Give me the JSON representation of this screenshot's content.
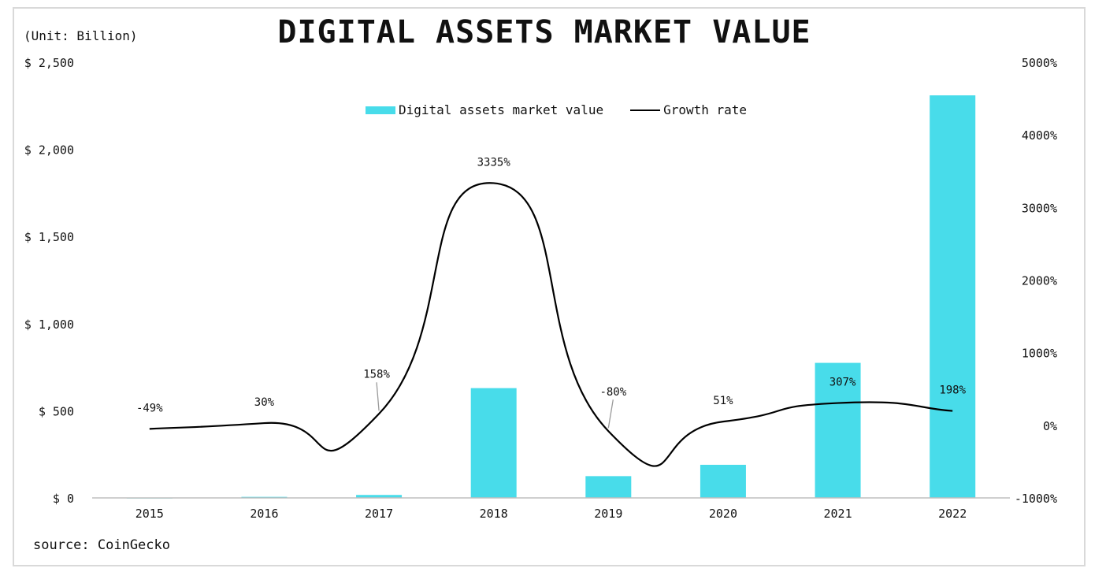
{
  "chart_data": {
    "type": "bar+line",
    "title": "DIGITAL ASSETS MARKET VALUE",
    "unit_note": "(Unit: Billion)",
    "source": "source: CoinGecko",
    "categories": [
      "2015",
      "2016",
      "2017",
      "2018",
      "2019",
      "2020",
      "2021",
      "2022"
    ],
    "series": [
      {
        "name": "Digital assets market value",
        "type": "bar",
        "axis": "left",
        "color": "#48dcea",
        "values": [
          0.3,
          6,
          17,
          630,
          125,
          190,
          775,
          2310
        ]
      },
      {
        "name": "Growth rate",
        "type": "line",
        "axis": "right",
        "color": "#000000",
        "values": [
          -49,
          30,
          158,
          3335,
          -80,
          51,
          307,
          198
        ],
        "labels": [
          "-49%",
          "30%",
          "158%",
          "3335%",
          "-80%",
          "51%",
          "307%",
          "198%"
        ]
      }
    ],
    "left_axis": {
      "ylim": [
        0,
        2500
      ],
      "ticks": [
        0,
        500,
        1000,
        1500,
        2000,
        2500
      ],
      "tick_labels": [
        "$ 0",
        "$ 500",
        "$ 1,000",
        "$ 1,500",
        "$ 2,000",
        "$ 2,500"
      ]
    },
    "right_axis": {
      "ylim": [
        -1000,
        5000
      ],
      "ticks": [
        -1000,
        0,
        1000,
        2000,
        3000,
        4000,
        5000
      ],
      "tick_labels": [
        "-1000%",
        "0%",
        "1000%",
        "2000%",
        "3000%",
        "4000%",
        "5000%"
      ]
    },
    "grid": false,
    "legend_position": "top-center"
  }
}
